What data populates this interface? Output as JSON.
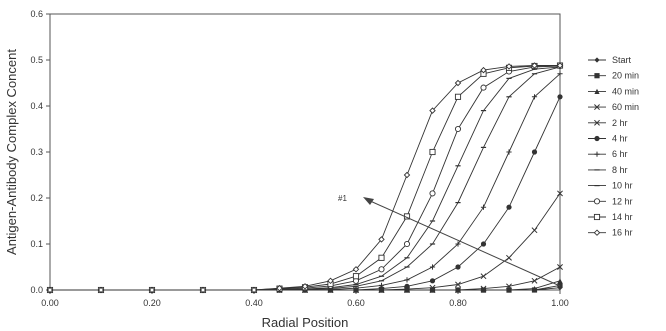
{
  "chart_data": {
    "type": "line",
    "xlabel": "Radial Position",
    "ylabel": "Antigen-Antibody Complex Concent",
    "xlim": [
      0,
      1.0
    ],
    "ylim": [
      0,
      0.6
    ],
    "x_ticks": [
      "0.00",
      "0.20",
      "0.40",
      "0.60",
      "0.80",
      "1.00"
    ],
    "y_ticks": [
      "0.0",
      "0.1",
      "0.2",
      "0.3",
      "0.4",
      "0.5",
      "0.6"
    ],
    "grid": false,
    "legend_position": "right",
    "annotation": {
      "text": "#1"
    },
    "x": [
      0.0,
      0.1,
      0.2,
      0.3,
      0.4,
      0.45,
      0.5,
      0.55,
      0.6,
      0.65,
      0.7,
      0.75,
      0.8,
      0.85,
      0.9,
      0.95,
      1.0
    ],
    "series": [
      {
        "name": "Start",
        "marker": "diamond",
        "values": [
          0,
          0,
          0,
          0,
          0,
          0,
          0,
          0,
          0,
          0,
          0,
          0,
          0,
          0,
          0,
          0,
          0.005
        ]
      },
      {
        "name": "20 min",
        "marker": "square",
        "values": [
          0,
          0,
          0,
          0,
          0,
          0,
          0,
          0,
          0,
          0,
          0,
          0,
          0,
          0,
          0,
          0,
          0.01
        ]
      },
      {
        "name": "40 min",
        "marker": "triangle",
        "values": [
          0,
          0,
          0,
          0,
          0,
          0,
          0,
          0,
          0,
          0,
          0,
          0,
          0,
          0,
          0,
          0.003,
          0.02
        ]
      },
      {
        "name": "60 min",
        "marker": "x",
        "values": [
          0,
          0,
          0,
          0,
          0,
          0,
          0,
          0,
          0,
          0,
          0,
          0,
          0,
          0.003,
          0.008,
          0.02,
          0.05
        ]
      },
      {
        "name": "2 hr",
        "marker": "x",
        "values": [
          0,
          0,
          0,
          0,
          0,
          0,
          0,
          0,
          0,
          0,
          0.002,
          0.005,
          0.012,
          0.03,
          0.07,
          0.13,
          0.21
        ]
      },
      {
        "name": "4 hr",
        "marker": "dot",
        "values": [
          0,
          0,
          0,
          0,
          0,
          0,
          0,
          0,
          0,
          0.003,
          0.008,
          0.02,
          0.05,
          0.1,
          0.18,
          0.3,
          0.42
        ]
      },
      {
        "name": "6 hr",
        "marker": "plus",
        "values": [
          0,
          0,
          0,
          0,
          0,
          0,
          0,
          0.001,
          0.004,
          0.01,
          0.022,
          0.05,
          0.1,
          0.18,
          0.3,
          0.42,
          0.47
        ]
      },
      {
        "name": "8 hr",
        "marker": "dash",
        "values": [
          0,
          0,
          0,
          0,
          0,
          0,
          0.001,
          0.003,
          0.008,
          0.02,
          0.05,
          0.1,
          0.19,
          0.31,
          0.42,
          0.47,
          0.485
        ]
      },
      {
        "name": "10 hr",
        "marker": "dash",
        "values": [
          0,
          0,
          0,
          0,
          0,
          0.001,
          0.002,
          0.005,
          0.012,
          0.03,
          0.07,
          0.15,
          0.27,
          0.39,
          0.46,
          0.48,
          0.485
        ]
      },
      {
        "name": "12 hr",
        "marker": "circle-open",
        "values": [
          0,
          0,
          0,
          0,
          0,
          0.002,
          0.004,
          0.009,
          0.02,
          0.045,
          0.1,
          0.21,
          0.35,
          0.44,
          0.475,
          0.485,
          0.487
        ]
      },
      {
        "name": "14 hr",
        "marker": "square-open",
        "values": [
          0,
          0,
          0,
          0,
          0,
          0.003,
          0.006,
          0.013,
          0.03,
          0.07,
          0.16,
          0.3,
          0.42,
          0.47,
          0.483,
          0.487,
          0.488
        ]
      },
      {
        "name": "16 hr",
        "marker": "diamond-open",
        "values": [
          0,
          0,
          0,
          0,
          0,
          0.004,
          0.008,
          0.02,
          0.045,
          0.11,
          0.25,
          0.39,
          0.45,
          0.478,
          0.486,
          0.488,
          0.488
        ]
      }
    ]
  }
}
